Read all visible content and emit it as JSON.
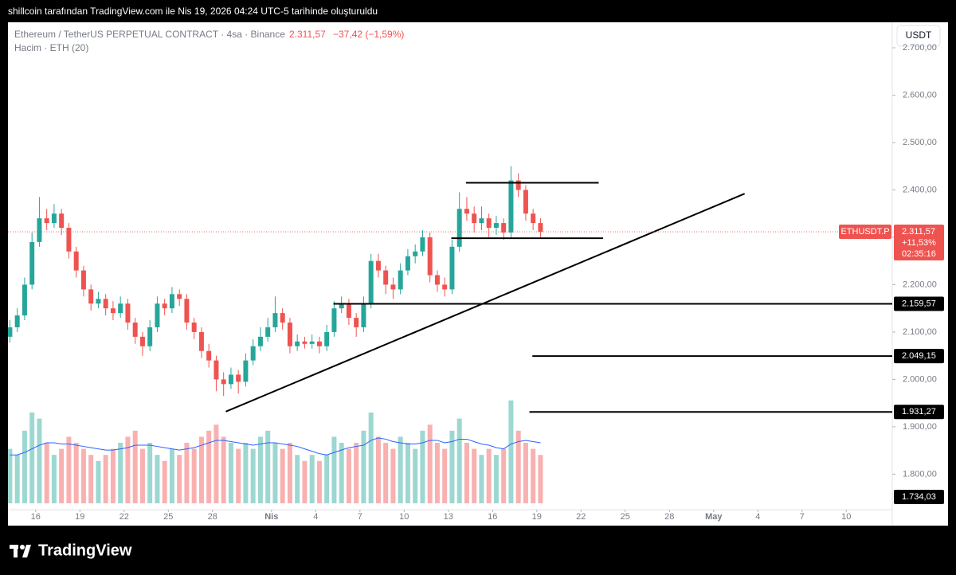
{
  "header": {
    "text": "shillcoin tarafından TradingView.com ile Nis 19, 2026 04:24 UTC-5 tarihinde oluşturuldu"
  },
  "legend": {
    "title": "Ethereum / TetherUS PERPETUAL CONTRACT · 4sa · Binance",
    "price": "2.311,57",
    "change": "−37,42 (−1,59%)",
    "volume": "Hacim · ETH (20)"
  },
  "footer": {
    "brand": "TradingView"
  },
  "chart_data": {
    "type": "candlestick",
    "currency": "USDT",
    "symbol_tag": "ETHUSDT.P",
    "last_price": {
      "value": 2311.57,
      "label": "2.311,57"
    },
    "change_pct": "+11,53%",
    "countdown": "02:35:16",
    "colors": {
      "up": "#26a69a",
      "down": "#ef5350",
      "ma": "#2962ff"
    },
    "open": [
      2090,
      2110,
      2135,
      2200,
      2290,
      2340,
      2330,
      2350,
      2320,
      2270,
      2230,
      2190,
      2160,
      2170,
      2150,
      2140,
      2160,
      2120,
      2090,
      2070,
      2110,
      2160,
      2150,
      2180,
      2170,
      2120,
      2100,
      2060,
      2040,
      2000,
      1990,
      2010,
      1995,
      2040,
      2070,
      2090,
      2110,
      2140,
      2120,
      2070,
      2080,
      2075,
      2080,
      2070,
      2100,
      2150,
      2160,
      2130,
      2110,
      2160,
      2250,
      2230,
      2200,
      2190,
      2230,
      2260,
      2270,
      2300,
      2220,
      2200,
      2190,
      2280,
      2360,
      2350,
      2330,
      2340,
      2320,
      2330,
      2310,
      2420,
      2400,
      2350,
      2330
    ],
    "high": [
      2125,
      2150,
      2215,
      2310,
      2385,
      2360,
      2370,
      2360,
      2330,
      2280,
      2240,
      2200,
      2185,
      2180,
      2165,
      2175,
      2170,
      2130,
      2100,
      2125,
      2175,
      2170,
      2195,
      2190,
      2180,
      2130,
      2110,
      2075,
      2050,
      2015,
      2025,
      2020,
      2055,
      2085,
      2110,
      2130,
      2175,
      2150,
      2130,
      2095,
      2090,
      2095,
      2090,
      2115,
      2165,
      2175,
      2170,
      2140,
      2175,
      2265,
      2265,
      2240,
      2215,
      2245,
      2275,
      2285,
      2315,
      2310,
      2230,
      2215,
      2295,
      2395,
      2385,
      2365,
      2365,
      2350,
      2345,
      2340,
      2450,
      2435,
      2410,
      2360,
      2340
    ],
    "low": [
      2078,
      2100,
      2125,
      2190,
      2280,
      2315,
      2320,
      2305,
      2255,
      2215,
      2175,
      2145,
      2150,
      2135,
      2125,
      2130,
      2105,
      2075,
      2050,
      2060,
      2100,
      2135,
      2140,
      2155,
      2105,
      2085,
      2045,
      2025,
      1975,
      1965,
      1980,
      1970,
      1985,
      2030,
      2060,
      2080,
      2100,
      2105,
      2055,
      2060,
      2065,
      2065,
      2055,
      2060,
      2090,
      2140,
      2115,
      2090,
      2100,
      2150,
      2215,
      2180,
      2170,
      2180,
      2220,
      2245,
      2260,
      2205,
      2185,
      2175,
      2180,
      2270,
      2335,
      2310,
      2315,
      2300,
      2305,
      2295,
      2300,
      2385,
      2335,
      2315,
      2300
    ],
    "close": [
      2110,
      2135,
      2200,
      2290,
      2340,
      2330,
      2350,
      2320,
      2270,
      2230,
      2190,
      2160,
      2170,
      2150,
      2140,
      2160,
      2120,
      2090,
      2070,
      2110,
      2160,
      2150,
      2180,
      2170,
      2120,
      2100,
      2060,
      2040,
      2000,
      1990,
      2010,
      1995,
      2040,
      2070,
      2090,
      2110,
      2140,
      2120,
      2070,
      2080,
      2075,
      2080,
      2070,
      2100,
      2150,
      2160,
      2130,
      2110,
      2160,
      2250,
      2230,
      2200,
      2190,
      2230,
      2260,
      2270,
      2300,
      2220,
      2200,
      2190,
      2280,
      2360,
      2350,
      2330,
      2340,
      2320,
      2330,
      2310,
      2420,
      2400,
      2350,
      2330,
      2311.57
    ],
    "volume": [
      45,
      40,
      60,
      75,
      70,
      50,
      40,
      45,
      55,
      50,
      45,
      40,
      35,
      40,
      45,
      50,
      55,
      60,
      45,
      50,
      40,
      35,
      45,
      40,
      50,
      45,
      55,
      60,
      65,
      55,
      50,
      45,
      50,
      45,
      55,
      60,
      50,
      45,
      50,
      40,
      35,
      40,
      35,
      40,
      55,
      50,
      45,
      50,
      60,
      75,
      55,
      50,
      45,
      55,
      50,
      45,
      60,
      65,
      50,
      45,
      60,
      70,
      50,
      45,
      40,
      45,
      40,
      45,
      85,
      60,
      50,
      45,
      40
    ],
    "volume_ma": [
      40,
      40,
      42,
      45,
      48,
      50,
      50,
      49,
      49,
      48,
      47,
      46,
      45,
      44,
      44,
      45,
      46,
      48,
      48,
      48,
      47,
      46,
      45,
      44,
      45,
      46,
      48,
      50,
      52,
      52,
      51,
      50,
      49,
      48,
      49,
      50,
      50,
      49,
      48,
      47,
      45,
      43,
      41,
      40,
      42,
      44,
      46,
      47,
      48,
      52,
      54,
      53,
      51,
      50,
      49,
      49,
      50,
      52,
      52,
      50,
      51,
      53,
      53,
      51,
      49,
      48,
      46,
      45,
      49,
      51,
      52,
      51,
      50
    ],
    "volume_lim": [
      0,
      100
    ],
    "ylim": [
      1725,
      2742
    ],
    "yticks": [
      {
        "value": 2700,
        "label": "2.700,00"
      },
      {
        "value": 2600,
        "label": "2.600,00"
      },
      {
        "value": 2500,
        "label": "2.500,00"
      },
      {
        "value": 2400,
        "label": "2.400,00"
      },
      {
        "value": 2300,
        "label": "2.300,00"
      },
      {
        "value": 2200,
        "label": "2.200,00"
      },
      {
        "value": 2100,
        "label": "2.100,00"
      },
      {
        "value": 2000,
        "label": "2.000,00"
      },
      {
        "value": 1900,
        "label": "1.900,00"
      },
      {
        "value": 1800,
        "label": "1.800,00"
      }
    ],
    "xlim": [
      0,
      60
    ],
    "xticks": [
      {
        "value": 2,
        "label": "16"
      },
      {
        "value": 5,
        "label": "19"
      },
      {
        "value": 8,
        "label": "22"
      },
      {
        "value": 11,
        "label": "25"
      },
      {
        "value": 14,
        "label": "28"
      },
      {
        "value": 18,
        "label": "Nis"
      },
      {
        "value": 21,
        "label": "4"
      },
      {
        "value": 24,
        "label": "7"
      },
      {
        "value": 27,
        "label": "10"
      },
      {
        "value": 30,
        "label": "13"
      },
      {
        "value": 33,
        "label": "16"
      },
      {
        "value": 36,
        "label": "19"
      },
      {
        "value": 39,
        "label": "22"
      },
      {
        "value": 42,
        "label": "25"
      },
      {
        "value": 45,
        "label": "28"
      },
      {
        "value": 48,
        "label": "May"
      },
      {
        "value": 51,
        "label": "4"
      },
      {
        "value": 54,
        "label": "7"
      },
      {
        "value": 57,
        "label": "10"
      }
    ],
    "levels": [
      {
        "value": 2159.57,
        "label": "2.159,57",
        "x_start": 22.2
      },
      {
        "value": 2049.15,
        "label": "2.049,15",
        "x_start": 35.7
      },
      {
        "value": 1931.27,
        "label": "1.931,27",
        "x_start": 35.5
      },
      {
        "value": 1734.03,
        "label": "1.734,03"
      }
    ],
    "drawings": [
      {
        "x1": 14.9,
        "y1": 1932,
        "x2": 50.1,
        "y2": 2392
      },
      {
        "x1": 31.2,
        "y1": 2415,
        "x2": 40.2,
        "y2": 2415
      },
      {
        "x1": 30.2,
        "y1": 2298,
        "x2": 40.5,
        "y2": 2298
      }
    ]
  }
}
